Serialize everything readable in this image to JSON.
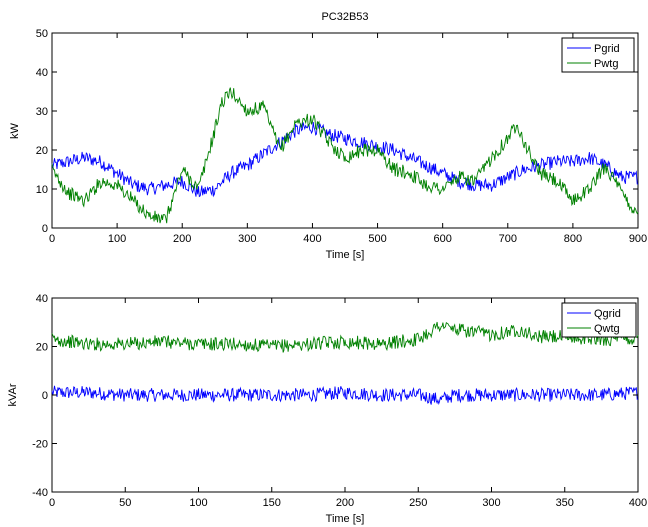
{
  "chart_data": [
    {
      "type": "line",
      "title": "PC32B53",
      "xlabel": "Time [s]",
      "ylabel": "kW",
      "xlim": [
        0,
        900
      ],
      "ylim": [
        0,
        50
      ],
      "xticks": [
        "0",
        "100",
        "200",
        "300",
        "400",
        "500",
        "600",
        "700",
        "800",
        "900"
      ],
      "yticks": [
        "0",
        "10",
        "20",
        "30",
        "40",
        "50"
      ],
      "legend_position": "top-right",
      "grid": false,
      "series": [
        {
          "name": "Pgrid",
          "color": "#0000ff",
          "x": [
            0,
            25,
            50,
            75,
            100,
            125,
            150,
            175,
            200,
            225,
            250,
            275,
            300,
            325,
            350,
            375,
            400,
            425,
            450,
            475,
            500,
            525,
            550,
            575,
            600,
            625,
            650,
            675,
            700,
            725,
            750,
            775,
            800,
            825,
            850,
            875,
            900
          ],
          "y": [
            16,
            17,
            18,
            17,
            14,
            11,
            10,
            11,
            12,
            9,
            10,
            14,
            16,
            19,
            22,
            25,
            26,
            24,
            23,
            22,
            21,
            20,
            18,
            16,
            14,
            12,
            11,
            11,
            13,
            15,
            16,
            17,
            17,
            18,
            16,
            13,
            13
          ]
        },
        {
          "name": "Pwtg",
          "color": "#008000",
          "x": [
            0,
            25,
            50,
            75,
            100,
            125,
            150,
            175,
            200,
            225,
            250,
            260,
            275,
            300,
            325,
            350,
            375,
            400,
            425,
            450,
            475,
            500,
            525,
            550,
            575,
            600,
            625,
            650,
            675,
            700,
            715,
            725,
            750,
            775,
            800,
            825,
            850,
            875,
            900
          ],
          "y": [
            15,
            9,
            7,
            12,
            11,
            7,
            3,
            2,
            15,
            10,
            25,
            32,
            35,
            30,
            31,
            20,
            27,
            28,
            22,
            18,
            20,
            20,
            15,
            14,
            11,
            10,
            13,
            12,
            18,
            23,
            27,
            22,
            14,
            12,
            7,
            10,
            16,
            9,
            3
          ]
        }
      ]
    },
    {
      "type": "line",
      "title": "",
      "xlabel": "Time [s]",
      "ylabel": "kVAr",
      "xlim": [
        0,
        400
      ],
      "ylim": [
        -40,
        40
      ],
      "xticks": [
        "0",
        "50",
        "100",
        "150",
        "200",
        "250",
        "300",
        "350",
        "400"
      ],
      "yticks": [
        "-40",
        "-20",
        "0",
        "20",
        "40"
      ],
      "legend_position": "top-right",
      "grid": false,
      "series": [
        {
          "name": "Qgrid",
          "color": "#0000ff",
          "x": [
            0,
            25,
            50,
            75,
            100,
            125,
            150,
            175,
            200,
            225,
            250,
            265,
            275,
            300,
            325,
            350,
            375,
            400
          ],
          "y": [
            1,
            1,
            0,
            0,
            0,
            0,
            0,
            0,
            1,
            0,
            0,
            -2,
            0,
            0,
            0,
            0,
            0,
            1
          ]
        },
        {
          "name": "Qwtg",
          "color": "#008000",
          "x": [
            0,
            25,
            50,
            75,
            100,
            125,
            150,
            175,
            200,
            225,
            250,
            265,
            275,
            300,
            320,
            330,
            350,
            375,
            400
          ],
          "y": [
            23,
            21,
            21,
            22,
            21,
            21,
            20,
            21,
            22,
            21,
            23,
            29,
            27,
            25,
            27,
            24,
            24,
            23,
            23
          ]
        }
      ]
    }
  ]
}
